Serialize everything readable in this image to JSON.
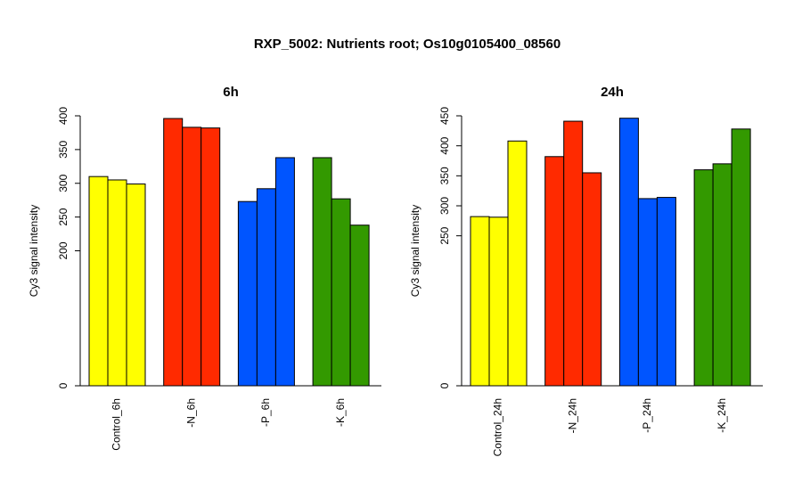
{
  "figure": {
    "title": "RXP_5002: Nutrients root; Os10g0105400_08560"
  },
  "chart_data": [
    {
      "type": "bar",
      "title": "6h",
      "ylabel": "Cy3 signal intensity",
      "ylim": [
        0,
        400
      ],
      "yticks": [
        0,
        200,
        250,
        300,
        350,
        400
      ],
      "categories": [
        "Control_6h",
        "-N_6h",
        "-P_6h",
        "-K_6h"
      ],
      "colors": [
        "#ffff00",
        "#ff2a00",
        "#0055ff",
        "#339900"
      ],
      "groups": [
        {
          "label": "Control_6h",
          "values": [
            310,
            305,
            299
          ]
        },
        {
          "label": "-N_6h",
          "values": [
            396,
            383,
            382
          ]
        },
        {
          "label": "-P_6h",
          "values": [
            273,
            292,
            338
          ]
        },
        {
          "label": "-K_6h",
          "values": [
            338,
            277,
            238
          ]
        }
      ]
    },
    {
      "type": "bar",
      "title": "24h",
      "ylabel": "Cy3 signal intensity",
      "ylim": [
        0,
        450
      ],
      "yticks": [
        0,
        250,
        300,
        350,
        400,
        450
      ],
      "categories": [
        "Control_24h",
        "-N_24h",
        "-P_24h",
        "-K_24h"
      ],
      "colors": [
        "#ffff00",
        "#ff2a00",
        "#0055ff",
        "#339900"
      ],
      "groups": [
        {
          "label": "Control_24h",
          "values": [
            282,
            281,
            408
          ]
        },
        {
          "label": "-N_24h",
          "values": [
            382,
            441,
            355
          ]
        },
        {
          "label": "-P_24h",
          "values": [
            446,
            312,
            314
          ]
        },
        {
          "label": "-K_24h",
          "values": [
            360,
            370,
            428
          ]
        }
      ]
    }
  ]
}
